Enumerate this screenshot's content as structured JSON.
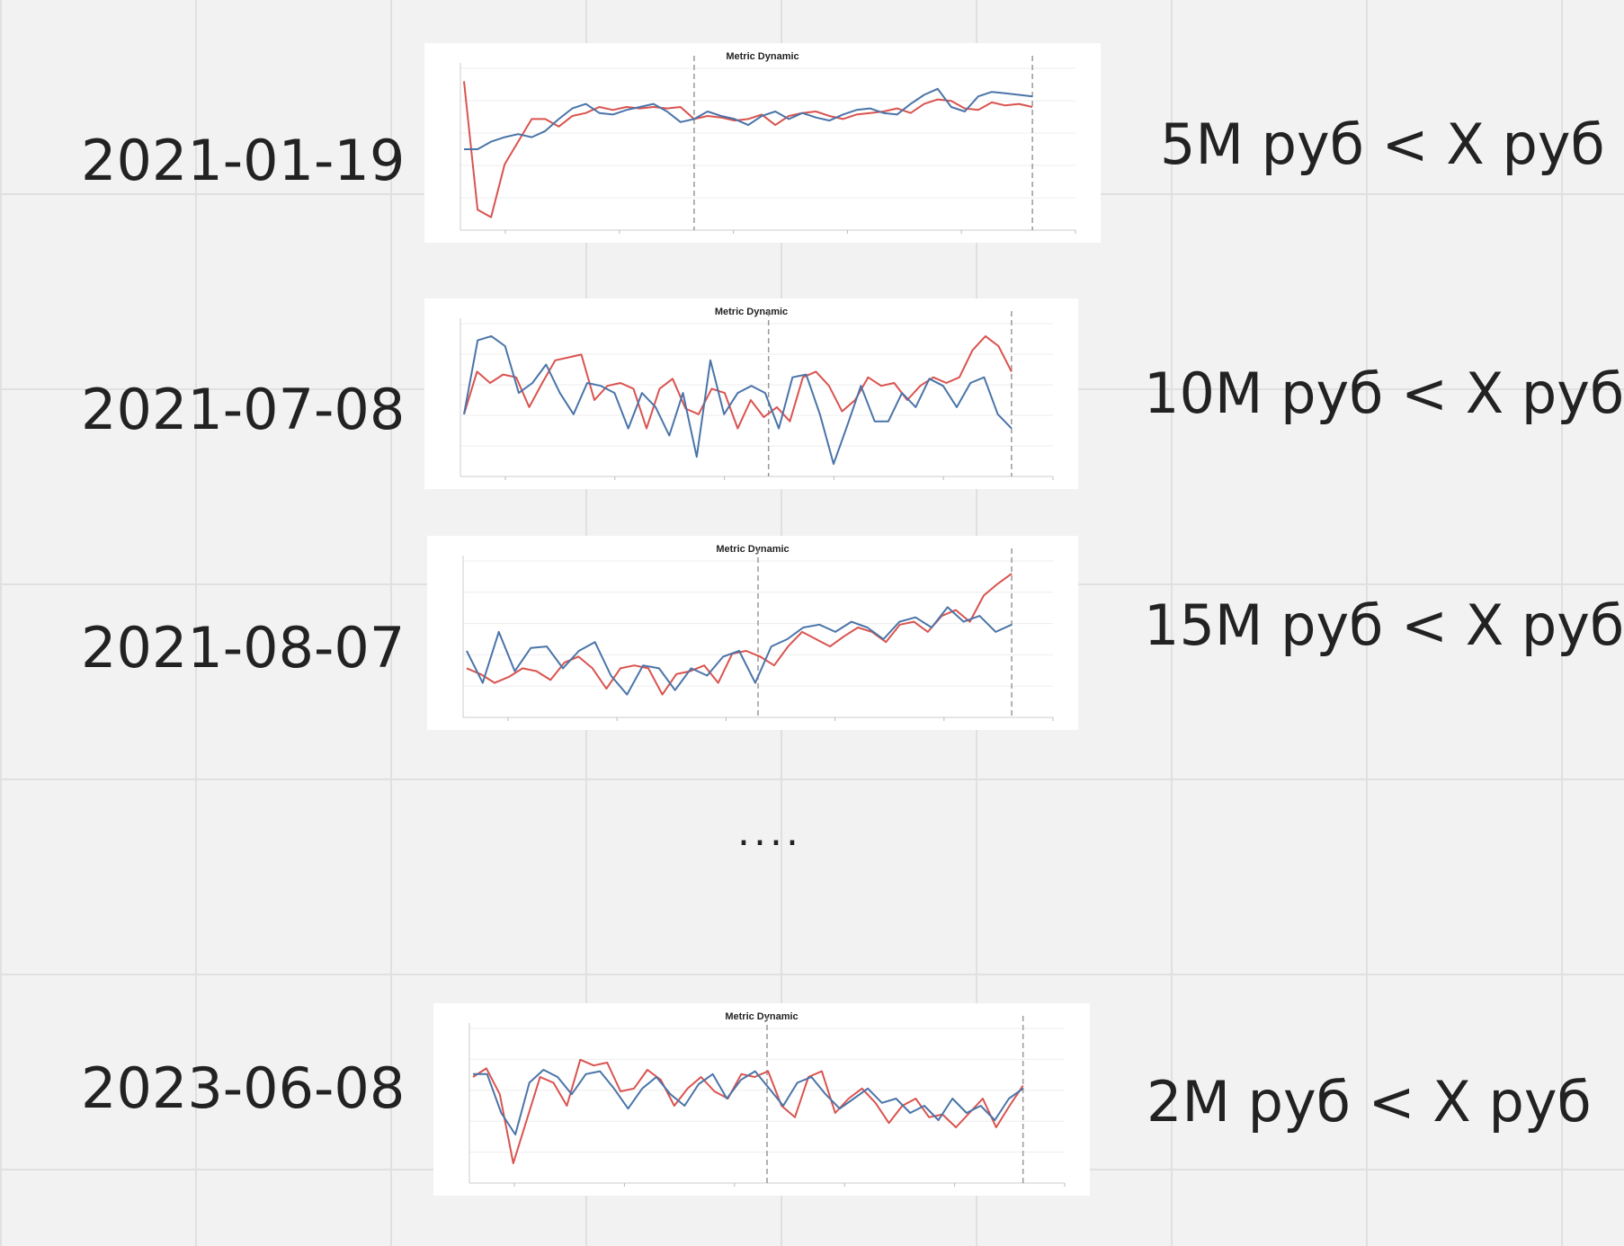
{
  "rows": [
    {
      "date": "2021-01-19",
      "threshold": "5M руб < X руб"
    },
    {
      "date": "2021-07-08",
      "threshold": "10M руб < X руб"
    },
    {
      "date": "2021-08-07",
      "threshold": "15M руб < X руб"
    },
    {
      "date": "2023-06-08",
      "threshold": "2M руб < X руб"
    }
  ],
  "ellipsis": "....",
  "colors": {
    "series_red": "#d9534f",
    "series_blue": "#4a74a8",
    "grid": "#eeeeee",
    "marker": "#999999"
  },
  "chart_data": [
    {
      "type": "line",
      "title": "Metric Dynamic",
      "grid": true,
      "series": [
        {
          "values": [
            0.95,
            0.1,
            0.05,
            0.4,
            0.55,
            0.7,
            0.7,
            0.65,
            0.72,
            0.74,
            0.78,
            0.76,
            0.78,
            0.77,
            0.78,
            0.77,
            0.78,
            0.7,
            0.72,
            0.71,
            0.69,
            0.7,
            0.73,
            0.66,
            0.72,
            0.74,
            0.75,
            0.72,
            0.7,
            0.73,
            0.74,
            0.75,
            0.77,
            0.74,
            0.8,
            0.83,
            0.82,
            0.77,
            0.76,
            0.81,
            0.79,
            0.8,
            0.78
          ]
        },
        {
          "values": [
            0.5,
            0.5,
            0.55,
            0.58,
            0.6,
            0.58,
            0.62,
            0.7,
            0.77,
            0.8,
            0.74,
            0.73,
            0.76,
            0.78,
            0.8,
            0.75,
            0.68,
            0.7,
            0.75,
            0.72,
            0.7,
            0.66,
            0.72,
            0.75,
            0.7,
            0.74,
            0.71,
            0.69,
            0.73,
            0.76,
            0.77,
            0.74,
            0.73,
            0.8,
            0.86,
            0.9,
            0.78,
            0.75,
            0.85,
            0.88,
            0.87,
            0.86,
            0.85
          ]
        }
      ],
      "markers": [
        0.38,
        0.93
      ]
    },
    {
      "type": "line",
      "title": "Metric Dynamic",
      "grid": true,
      "series": [
        {
          "values": [
            0.4,
            0.7,
            0.62,
            0.68,
            0.66,
            0.45,
            0.62,
            0.78,
            0.8,
            0.82,
            0.5,
            0.6,
            0.62,
            0.58,
            0.3,
            0.58,
            0.65,
            0.44,
            0.4,
            0.58,
            0.55,
            0.3,
            0.5,
            0.38,
            0.45,
            0.35,
            0.66,
            0.7,
            0.6,
            0.42,
            0.5,
            0.66,
            0.6,
            0.62,
            0.5,
            0.6,
            0.66,
            0.62,
            0.66,
            0.85,
            0.95,
            0.88,
            0.7
          ]
        },
        {
          "values": [
            0.4,
            0.92,
            0.95,
            0.88,
            0.55,
            0.62,
            0.75,
            0.55,
            0.4,
            0.62,
            0.6,
            0.55,
            0.3,
            0.55,
            0.45,
            0.25,
            0.55,
            0.1,
            0.78,
            0.4,
            0.55,
            0.6,
            0.55,
            0.3,
            0.66,
            0.68,
            0.4,
            0.05,
            0.32,
            0.6,
            0.35,
            0.35,
            0.55,
            0.45,
            0.65,
            0.6,
            0.45,
            0.62,
            0.66,
            0.4,
            0.3
          ]
        }
      ],
      "markers": [
        0.52,
        0.93
      ]
    },
    {
      "type": "line",
      "title": "Metric Dynamic",
      "grid": true,
      "series": [
        {
          "values": [
            0.3,
            0.26,
            0.2,
            0.24,
            0.3,
            0.28,
            0.22,
            0.34,
            0.38,
            0.3,
            0.16,
            0.3,
            0.32,
            0.3,
            0.12,
            0.26,
            0.28,
            0.32,
            0.2,
            0.4,
            0.42,
            0.38,
            0.32,
            0.45,
            0.55,
            0.5,
            0.45,
            0.52,
            0.58,
            0.55,
            0.48,
            0.6,
            0.62,
            0.55,
            0.66,
            0.7,
            0.62,
            0.8,
            0.88,
            0.95
          ]
        },
        {
          "values": [
            0.42,
            0.2,
            0.55,
            0.28,
            0.44,
            0.45,
            0.3,
            0.42,
            0.48,
            0.25,
            0.12,
            0.32,
            0.3,
            0.15,
            0.3,
            0.25,
            0.38,
            0.42,
            0.2,
            0.45,
            0.5,
            0.58,
            0.6,
            0.55,
            0.62,
            0.58,
            0.5,
            0.62,
            0.65,
            0.58,
            0.72,
            0.62,
            0.66,
            0.55,
            0.6
          ]
        }
      ],
      "markers": [
        0.5,
        0.93
      ]
    },
    {
      "type": "line",
      "title": "Metric Dynamic",
      "grid": true,
      "series": [
        {
          "values": [
            0.7,
            0.76,
            0.58,
            0.1,
            0.4,
            0.7,
            0.66,
            0.5,
            0.82,
            0.78,
            0.8,
            0.6,
            0.62,
            0.75,
            0.68,
            0.5,
            0.62,
            0.7,
            0.6,
            0.55,
            0.72,
            0.7,
            0.74,
            0.5,
            0.42,
            0.7,
            0.74,
            0.45,
            0.55,
            0.62,
            0.52,
            0.38,
            0.5,
            0.55,
            0.42,
            0.44,
            0.35,
            0.45,
            0.55,
            0.35,
            0.5,
            0.64
          ]
        },
        {
          "values": [
            0.72,
            0.72,
            0.45,
            0.3,
            0.66,
            0.75,
            0.7,
            0.58,
            0.72,
            0.74,
            0.62,
            0.48,
            0.62,
            0.7,
            0.58,
            0.5,
            0.65,
            0.72,
            0.55,
            0.68,
            0.74,
            0.62,
            0.5,
            0.66,
            0.7,
            0.58,
            0.48,
            0.55,
            0.62,
            0.52,
            0.55,
            0.45,
            0.5,
            0.4,
            0.55,
            0.45,
            0.5,
            0.4,
            0.55,
            0.62
          ]
        }
      ],
      "markers": [
        0.5,
        0.93
      ]
    }
  ]
}
